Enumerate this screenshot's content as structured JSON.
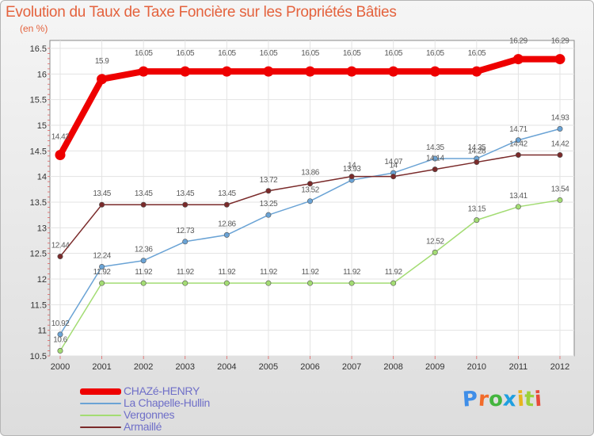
{
  "header": {
    "title": "Evolution du Taux de Taxe Foncière sur les Propriétés Bâties",
    "unit": "(en %)"
  },
  "logo": {
    "text": "Proxiti",
    "letter_colors": [
      "#3f8ee8",
      "#f26b2a",
      "#44b53f",
      "#1e9fe0",
      "#e8b41e",
      "#9bd13a",
      "#e84b3a"
    ]
  },
  "chart_data": {
    "type": "line",
    "title": "Evolution du Taux de Taxe Foncière sur les Propriétés Bâties",
    "ylabel": "(en %)",
    "xlabel": "",
    "x": [
      "2000",
      "2001",
      "2002",
      "2003",
      "2004",
      "2005",
      "2006",
      "2007",
      "2008",
      "2009",
      "2010",
      "2011",
      "2012"
    ],
    "ylim": [
      10.5,
      16.5
    ],
    "yticks": [
      "10.5",
      "11",
      "11.5",
      "12",
      "12.5",
      "13",
      "13.5",
      "14",
      "14.5",
      "15",
      "15.5",
      "16",
      "16.5"
    ],
    "grid": true,
    "legend_position": "bottom-left",
    "series": [
      {
        "name": "CHAZé-HENRY",
        "color": "#ee0000",
        "values": [
          14.42,
          15.9,
          16.05,
          16.05,
          16.05,
          16.05,
          16.05,
          16.05,
          16.05,
          16.05,
          16.05,
          16.29,
          16.29
        ],
        "labels": [
          "14.42",
          "15.9",
          "16.05",
          "16.05",
          "16.05",
          "16.05",
          "16.05",
          "16.05",
          "16.05",
          "16.05",
          "16.05",
          "16.29",
          "16.29"
        ]
      },
      {
        "name": "La Chapelle-Hullin",
        "color": "#6aa3d5",
        "values": [
          10.92,
          12.24,
          12.36,
          12.73,
          12.86,
          13.25,
          13.52,
          13.93,
          14.07,
          14.35,
          14.35,
          14.71,
          14.93
        ],
        "labels": [
          "10.92",
          "12.24",
          "12.36",
          "12.73",
          "12.86",
          "13.25",
          "13.52",
          "13.93",
          "14.07",
          "14.35",
          "14.35",
          "14.71",
          "14.93"
        ]
      },
      {
        "name": "Vergonnes",
        "color": "#a3dc73",
        "values": [
          10.6,
          11.92,
          11.92,
          11.92,
          11.92,
          11.92,
          11.92,
          11.92,
          11.92,
          12.52,
          13.15,
          13.41,
          13.54
        ],
        "labels": [
          "10.6",
          "11.92",
          "11.92",
          "11.92",
          "11.92",
          "11.92",
          "11.92",
          "11.92",
          "11.92",
          "12.52",
          "13.15",
          "13.41",
          "13.54"
        ]
      },
      {
        "name": "Armaillé",
        "color": "#7a2a2a",
        "values": [
          12.44,
          13.45,
          13.45,
          13.45,
          13.45,
          13.72,
          13.86,
          14.0,
          14.0,
          14.14,
          14.28,
          14.42,
          14.42
        ],
        "labels": [
          "12.44",
          "13.45",
          "13.45",
          "13.45",
          "13.45",
          "13.72",
          "13.86",
          "14",
          "14",
          "14.14",
          "14.28",
          "14.42",
          "14.42"
        ]
      }
    ]
  }
}
